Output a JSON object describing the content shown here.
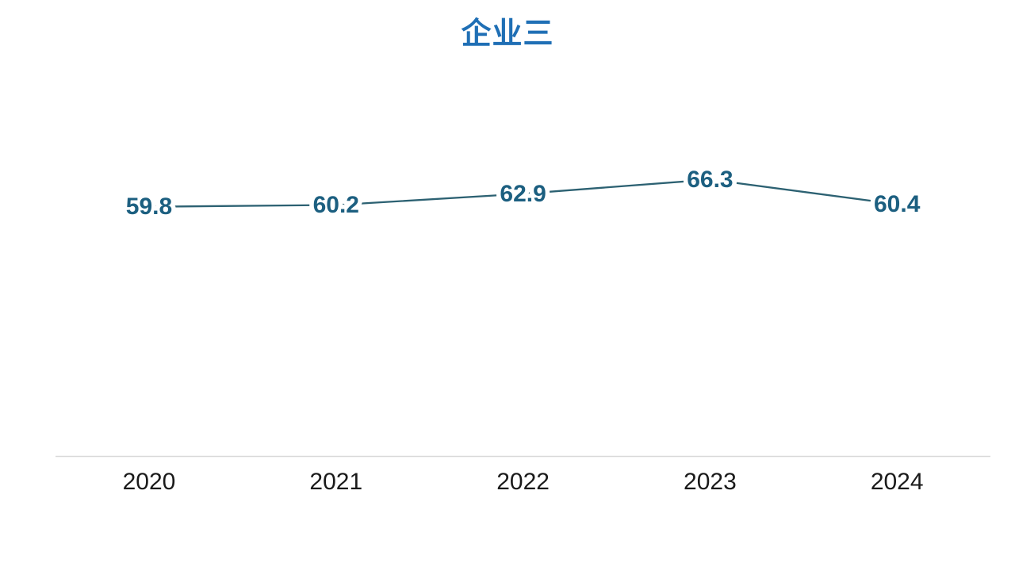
{
  "chart_data": {
    "type": "line",
    "title": "企业三",
    "categories": [
      "2020",
      "2021",
      "2022",
      "2023",
      "2024"
    ],
    "values": [
      59.8,
      60.2,
      62.9,
      66.3,
      60.4
    ],
    "data_labels": [
      "59.8",
      "60.2",
      "62.9",
      "66.3",
      "60.4"
    ],
    "xlabel": "",
    "ylabel": "",
    "ylim": [
      0,
      70
    ],
    "grid": false,
    "legend": "none",
    "y_axis_visible": false,
    "x_axis_visible": true,
    "data_label_position": "center-on-point"
  },
  "colors": {
    "title": "#1F6FB5",
    "line": "#2C6172",
    "data_label": "#1C5F80",
    "axis_line": "#D9D9D9",
    "tick_label": "#1A1A1A",
    "background": "#FFFFFF"
  }
}
